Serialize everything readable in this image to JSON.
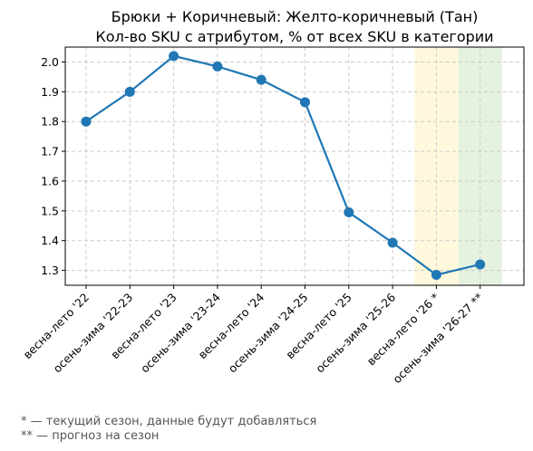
{
  "chart_data": {
    "type": "line",
    "title": "Брюки + Коричневый: Желто-коричневый (Тан)",
    "subtitle": "Кол-во SKU с атрибутом, % от всех SKU в категории",
    "categories": [
      "весна-лето '22",
      "осень-зима '22-23",
      "весна-лето '23",
      "осень-зима '23-24",
      "весна-лето '24",
      "осень-зима '24-25",
      "весна-лето '25",
      "осень-зима '25-26",
      "весна-лето '26 *",
      "осень-зима '26-27 **"
    ],
    "series": [
      {
        "values": [
          1.8,
          1.9,
          2.02,
          1.985,
          1.94,
          1.865,
          1.495,
          1.393,
          1.285,
          1.32
        ]
      }
    ],
    "ylim": [
      1.25,
      2.05
    ],
    "yticks": [
      "1.3",
      "1.4",
      "1.5",
      "1.6",
      "1.7",
      "1.8",
      "1.9",
      "2.0"
    ],
    "grid": true,
    "highlights": [
      {
        "category_index": 8,
        "color": "#fff8dc"
      },
      {
        "category_index": 9,
        "color": "#e6f2e0"
      }
    ],
    "line_color": "#1f77b4",
    "notes": [
      "* — текущий сезон, данные будут добавляться",
      "** — прогноз на сезон"
    ]
  }
}
